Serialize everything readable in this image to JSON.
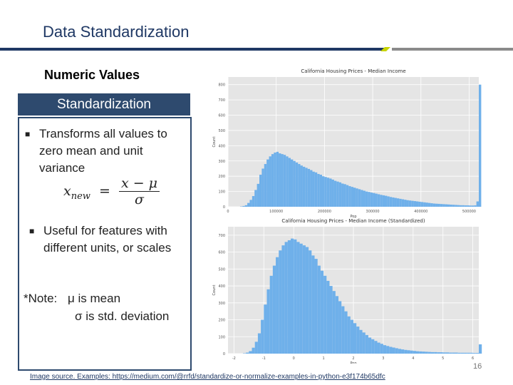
{
  "slide": {
    "title": "Data Standardization",
    "subtitle": "Numeric Values",
    "panel_header": "Standardization",
    "bullets": [
      "Transforms all values to zero mean and unit variance",
      "Useful for features with different units, or scales"
    ],
    "formula": {
      "lhs": "x",
      "lhs_sub": "new",
      "eq": "=",
      "num": "x − μ",
      "den": "σ"
    },
    "note": {
      "prefix": "*Note:",
      "line1": "μ is mean",
      "line2": "σ is std. deviation"
    },
    "source": "Image source. Examples: https://medium.com/@rrfd/standardize-or-normalize-examples-in-python-e3f174b65dfc",
    "page_number": "16",
    "colors": {
      "title": "#1f3864",
      "panel": "#2e4a6e",
      "bar": "#6fb0ea",
      "plot_bg": "#e5e5e5"
    }
  },
  "chart_data": [
    {
      "type": "bar",
      "title": "California Housing Prices - Median Income",
      "xlabel": "Pop",
      "ylabel": "Count",
      "x_ticks": [
        "0",
        "100000",
        "200000",
        "300000",
        "400000",
        "500000"
      ],
      "y_ticks": [
        "0",
        "100",
        "200",
        "300",
        "400",
        "500",
        "600",
        "700",
        "800"
      ],
      "xlim": [
        0,
        520000
      ],
      "ylim": [
        0,
        850
      ],
      "bin_width": 5000,
      "grid": true,
      "values": [
        0,
        0,
        0,
        0,
        0,
        2,
        5,
        10,
        25,
        45,
        70,
        110,
        150,
        210,
        250,
        280,
        310,
        330,
        345,
        355,
        360,
        350,
        345,
        340,
        330,
        320,
        310,
        300,
        290,
        280,
        270,
        262,
        255,
        248,
        240,
        230,
        225,
        215,
        210,
        200,
        195,
        190,
        185,
        178,
        170,
        165,
        160,
        152,
        148,
        142,
        135,
        130,
        125,
        120,
        115,
        110,
        105,
        100,
        97,
        93,
        90,
        86,
        82,
        78,
        75,
        72,
        68,
        64,
        61,
        58,
        55,
        52,
        49,
        46,
        43,
        41,
        39,
        37,
        35,
        33,
        31,
        29,
        27,
        25,
        23,
        21,
        20,
        19,
        18,
        17,
        16,
        15,
        14,
        13,
        12,
        11,
        10,
        10,
        9,
        9,
        8,
        8,
        9,
        35,
        800
      ]
    },
    {
      "type": "bar",
      "title": "California Housing Prices - Median Income (Standardized)",
      "xlabel": "Pop",
      "ylabel": "Count",
      "x_ticks": [
        "-2",
        "-1",
        "0",
        "1",
        "2",
        "3",
        "4",
        "5",
        "6"
      ],
      "y_ticks": [
        "0",
        "100",
        "200",
        "300",
        "400",
        "500",
        "600",
        "700"
      ],
      "xlim": [
        -2.2,
        6.2
      ],
      "ylim": [
        0,
        750
      ],
      "bin_width": 0.1,
      "grid": true,
      "values": [
        0,
        0,
        0,
        0,
        0,
        2,
        6,
        15,
        35,
        70,
        120,
        200,
        290,
        380,
        460,
        520,
        570,
        610,
        640,
        660,
        670,
        680,
        675,
        660,
        650,
        640,
        630,
        610,
        580,
        560,
        520,
        490,
        460,
        430,
        400,
        370,
        340,
        310,
        280,
        250,
        220,
        200,
        180,
        160,
        140,
        125,
        110,
        95,
        85,
        75,
        65,
        58,
        50,
        45,
        40,
        36,
        32,
        28,
        25,
        22,
        20,
        18,
        16,
        14,
        13,
        12,
        11,
        10,
        9,
        9,
        8,
        8,
        7,
        7,
        6,
        6,
        6,
        5,
        5,
        5,
        5,
        5,
        4,
        4,
        55
      ]
    }
  ]
}
